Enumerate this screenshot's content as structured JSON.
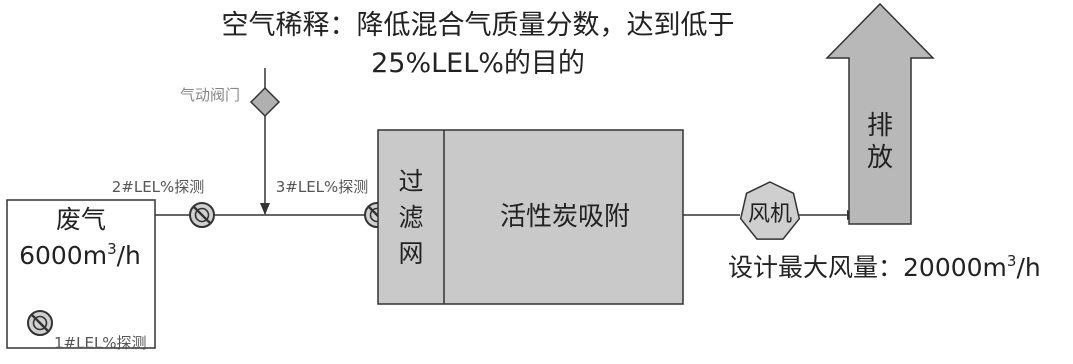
{
  "annotation": {
    "line1": "空气稀释：降低混合气质量分数，达到低于",
    "line2": "25%LEL%的目的"
  },
  "valve_label": "气动阀门",
  "waste_gas": {
    "title": "废气",
    "flow_value": "6000m",
    "flow_exp": "3",
    "flow_unit": "/h"
  },
  "sensors": {
    "s1": "1#LEL%探测",
    "s2": "2#LEL%探测",
    "s3": "3#LEL%探测"
  },
  "filter": {
    "chars": [
      "过",
      "滤",
      "网"
    ]
  },
  "adsorber_label": "活性炭吸附",
  "fan_label": "风机",
  "design": {
    "prefix": "设计最大风量：",
    "value": "20000m",
    "exp": "3",
    "unit": "/h"
  },
  "exhaust": {
    "chars": [
      "排",
      "放"
    ]
  },
  "colors": {
    "stroke": "#333333",
    "box_fill": "#c9c9c9",
    "arrow_fill": "#b8b8b8",
    "fan_fill": "#cfcfcf",
    "text": "#222222",
    "label_gray": "#888888"
  }
}
